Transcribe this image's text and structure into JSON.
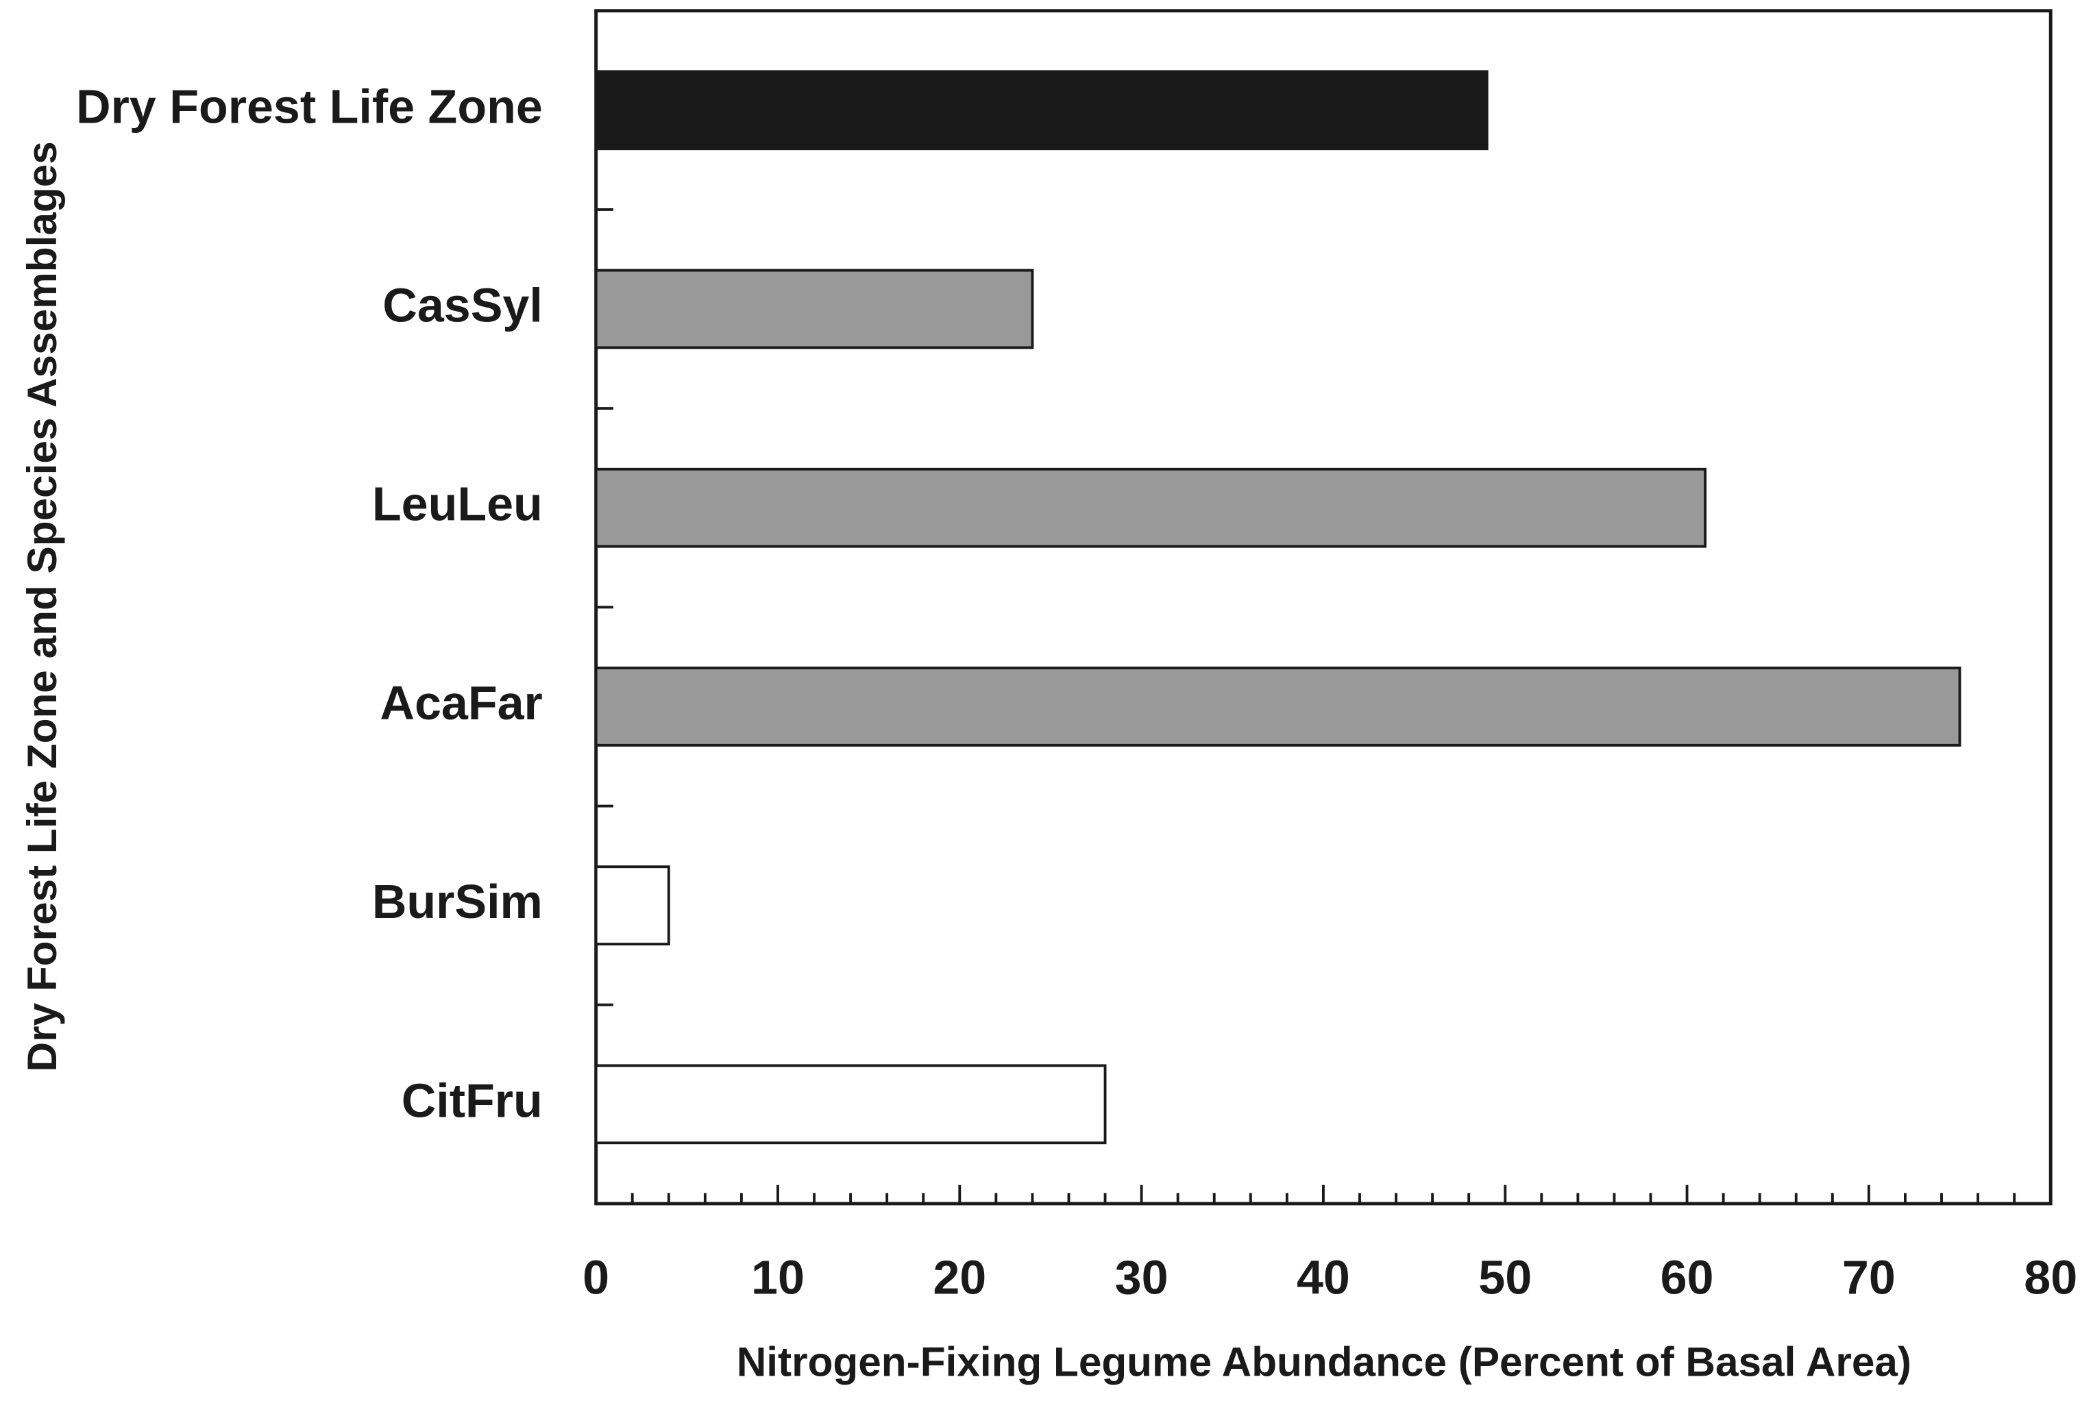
{
  "chart_data": {
    "type": "hbar",
    "ylabel": "Dry Forest Life Zone and Species Assemblages",
    "xlabel": "Nitrogen-Fixing Legume Abundance (Percent of Basal Area)",
    "categories": [
      "Dry Forest Life Zone",
      "CasSyl",
      "LeuLeu",
      "AcaFar",
      "BurSim",
      "CitFru"
    ],
    "values": [
      49,
      24,
      61,
      75,
      4,
      28
    ],
    "colors": [
      "#1a1a1a",
      "#999999",
      "#999999",
      "#999999",
      "#ffffff",
      "#ffffff"
    ],
    "xlim": [
      0,
      80
    ],
    "xticks": [
      0,
      10,
      20,
      30,
      40,
      50,
      60,
      70,
      80
    ],
    "xminorticks": [
      2,
      4,
      6,
      8,
      12,
      14,
      16,
      18,
      22,
      24,
      26,
      28,
      32,
      34,
      36,
      38,
      42,
      44,
      46,
      48,
      52,
      54,
      56,
      58,
      62,
      64,
      66,
      68,
      72,
      74,
      76,
      78
    ]
  }
}
